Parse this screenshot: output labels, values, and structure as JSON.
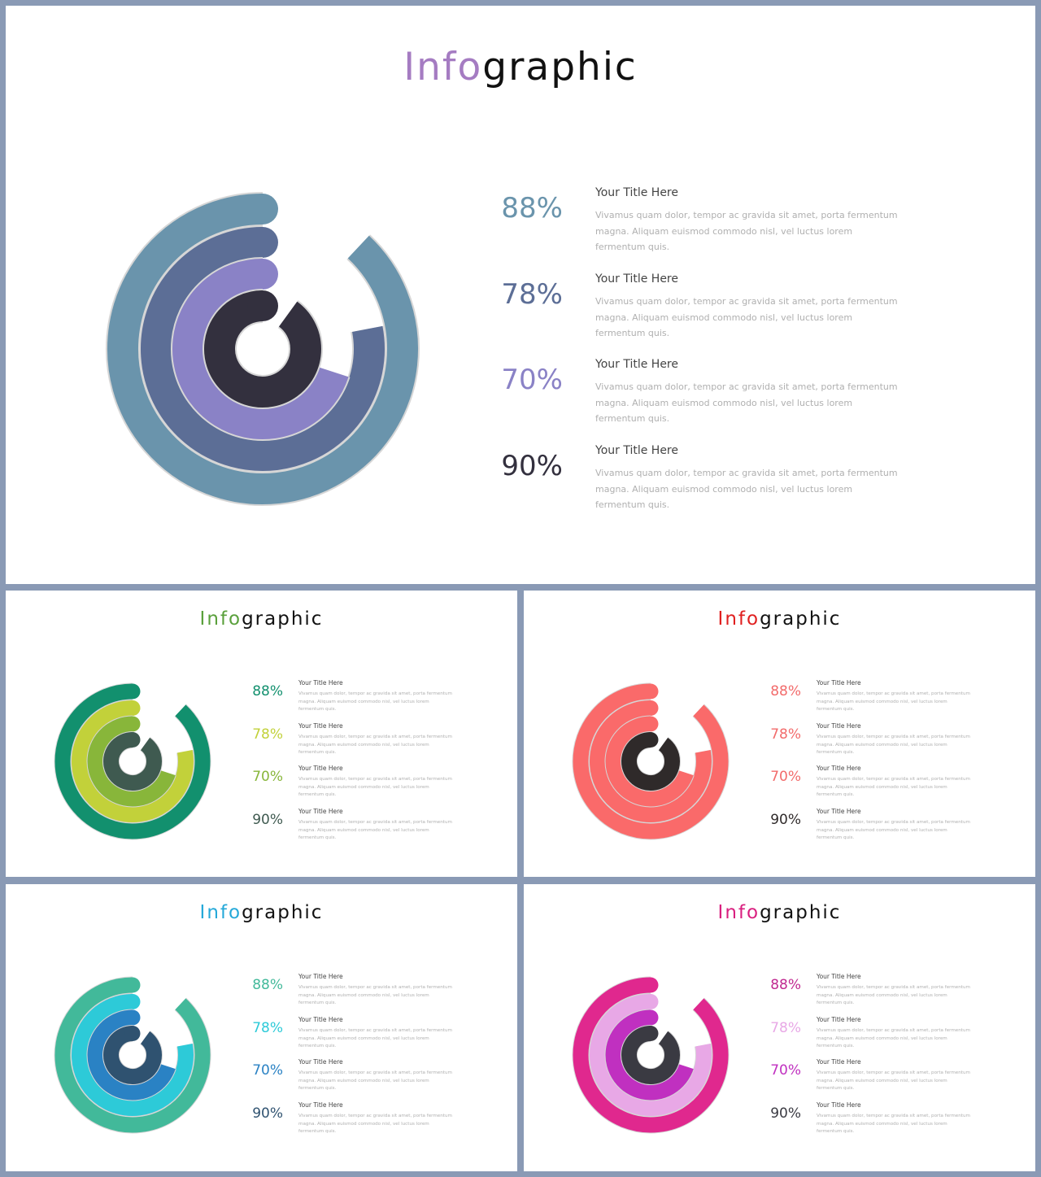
{
  "slides": [
    {
      "title_accent": "Info",
      "title_rest": "graphic",
      "colors": {
        "accent": "#a57cc2",
        "rings": [
          "#6a94ac",
          "#5c6e96",
          "#8a82c6",
          "#33303e"
        ],
        "pct": [
          "#6a94ac",
          "#5c6e96",
          "#8a82c6",
          "#33303e"
        ]
      },
      "items": [
        {
          "value": "88%",
          "title": "Your Title Here",
          "text": "Vivamus quam dolor, tempor ac gravida sit amet, porta fermentum magna. Aliquam euismod commodo nisl, vel luctus lorem fermentum quis."
        },
        {
          "value": "78%",
          "title": "Your Title Here",
          "text": "Vivamus quam dolor, tempor ac gravida sit amet, porta fermentum magna. Aliquam euismod commodo nisl, vel luctus lorem fermentum quis."
        },
        {
          "value": "70%",
          "title": "Your Title Here",
          "text": "Vivamus quam dolor, tempor ac gravida sit amet, porta fermentum magna. Aliquam euismod commodo nisl, vel luctus lorem fermentum quis."
        },
        {
          "value": "90%",
          "title": "Your Title Here",
          "text": "Vivamus quam dolor, tempor ac gravida sit amet, porta fermentum magna. Aliquam euismod commodo nisl, vel luctus lorem fermentum quis."
        }
      ]
    },
    {
      "title_accent": "Info",
      "title_rest": "graphic",
      "colors": {
        "accent": "#5aa03c",
        "rings": [
          "#12906e",
          "#c2d13a",
          "#88b63a",
          "#3f5a50"
        ],
        "pct": [
          "#12906e",
          "#c2d13a",
          "#88b63a",
          "#3f5a50"
        ]
      },
      "items": [
        {
          "value": "88%",
          "title": "Your Title Here",
          "text": "Vivamus quam dolor, tempor ac gravida sit amet, porta fermentum magna. Aliquam euismod commodo nisl, vel luctus lorem fermentum quis."
        },
        {
          "value": "78%",
          "title": "Your Title Here",
          "text": "Vivamus quam dolor, tempor ac gravida sit amet, porta fermentum magna. Aliquam euismod commodo nisl, vel luctus lorem fermentum quis."
        },
        {
          "value": "70%",
          "title": "Your Title Here",
          "text": "Vivamus quam dolor, tempor ac gravida sit amet, porta fermentum magna. Aliquam euismod commodo nisl, vel luctus lorem fermentum quis."
        },
        {
          "value": "90%",
          "title": "Your Title Here",
          "text": "Vivamus quam dolor, tempor ac gravida sit amet, porta fermentum magna. Aliquam euismod commodo nisl, vel luctus lorem fermentum quis."
        }
      ]
    },
    {
      "title_accent": "Info",
      "title_rest": "graphic",
      "colors": {
        "accent": "#e02020",
        "rings": [
          "#fa6a6a",
          "#fa6a6a",
          "#fa6a6a",
          "#2f2a2a"
        ],
        "pct": [
          "#f26b6b",
          "#f26b6b",
          "#f26b6b",
          "#2f2a2a"
        ]
      },
      "items": [
        {
          "value": "88%",
          "title": "Your Title Here",
          "text": "Vivamus quam dolor, tempor ac gravida sit amet, porta fermentum magna. Aliquam euismod commodo nisl, vel luctus lorem fermentum quis."
        },
        {
          "value": "78%",
          "title": "Your Title Here",
          "text": "Vivamus quam dolor, tempor ac gravida sit amet, porta fermentum magna. Aliquam euismod commodo nisl, vel luctus lorem fermentum quis."
        },
        {
          "value": "70%",
          "title": "Your Title Here",
          "text": "Vivamus quam dolor, tempor ac gravida sit amet, porta fermentum magna. Aliquam euismod commodo nisl, vel luctus lorem fermentum quis."
        },
        {
          "value": "90%",
          "title": "Your Title Here",
          "text": "Vivamus quam dolor, tempor ac gravida sit amet, porta fermentum magna. Aliquam euismod commodo nisl, vel luctus lorem fermentum quis."
        }
      ]
    },
    {
      "title_accent": "Info",
      "title_rest": "graphic",
      "colors": {
        "accent": "#25a9d9",
        "rings": [
          "#42b99a",
          "#2dcad8",
          "#2a82c4",
          "#2f5270"
        ],
        "pct": [
          "#42b99a",
          "#2dcad8",
          "#2a82c4",
          "#2f5270"
        ]
      },
      "items": [
        {
          "value": "88%",
          "title": "Your Title Here",
          "text": "Vivamus quam dolor, tempor ac gravida sit amet, porta fermentum magna. Aliquam euismod commodo nisl, vel luctus lorem fermentum quis."
        },
        {
          "value": "78%",
          "title": "Your Title Here",
          "text": "Vivamus quam dolor, tempor ac gravida sit amet, porta fermentum magna. Aliquam euismod commodo nisl, vel luctus lorem fermentum quis."
        },
        {
          "value": "70%",
          "title": "Your Title Here",
          "text": "Vivamus quam dolor, tempor ac gravida sit amet, porta fermentum magna. Aliquam euismod commodo nisl, vel luctus lorem fermentum quis."
        },
        {
          "value": "90%",
          "title": "Your Title Here",
          "text": "Vivamus quam dolor, tempor ac gravida sit amet, porta fermentum magna. Aliquam euismod commodo nisl, vel luctus lorem fermentum quis."
        }
      ]
    },
    {
      "title_accent": "Info",
      "title_rest": "graphic",
      "colors": {
        "accent": "#d91f7f",
        "rings": [
          "#e0288e",
          "#e8a8e6",
          "#c030c0",
          "#3a3a42"
        ],
        "pct": [
          "#c02890",
          "#e8a8e6",
          "#c030c0",
          "#3a3a42"
        ]
      },
      "items": [
        {
          "value": "88%",
          "title": "Your Title Here",
          "text": "Vivamus quam dolor, tempor ac gravida sit amet, porta fermentum magna. Aliquam euismod commodo nisl, vel luctus lorem fermentum quis."
        },
        {
          "value": "78%",
          "title": "Your Title Here",
          "text": "Vivamus quam dolor, tempor ac gravida sit amet, porta fermentum magna. Aliquam euismod commodo nisl, vel luctus lorem fermentum quis."
        },
        {
          "value": "70%",
          "title": "Your Title Here",
          "text": "Vivamus quam dolor, tempor ac gravida sit amet, porta fermentum magna. Aliquam euismod commodo nisl, vel luctus lorem fermentum quis."
        },
        {
          "value": "90%",
          "title": "Your Title Here",
          "text": "Vivamus quam dolor, tempor ac gravida sit amet, porta fermentum magna. Aliquam euismod commodo nisl, vel luctus lorem fermentum quis."
        }
      ]
    }
  ]
}
